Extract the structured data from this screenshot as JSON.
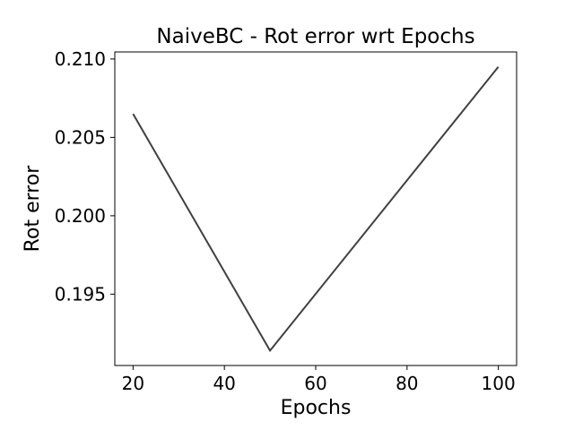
{
  "chart_data": {
    "type": "line",
    "title": "NaiveBC - Rot error wrt Epochs",
    "xlabel": "Epochs",
    "ylabel": "Rot error",
    "x": [
      20,
      50,
      100
    ],
    "series": [
      {
        "values": [
          0.2065,
          0.1914,
          0.2095
        ]
      }
    ],
    "xlim": [
      16,
      104
    ],
    "ylim": [
      0.19045,
      0.21045
    ],
    "xticks": [
      20,
      40,
      60,
      80,
      100
    ],
    "xtick_labels": [
      "20",
      "40",
      "60",
      "80",
      "100"
    ],
    "yticks": [
      0.195,
      0.2,
      0.205,
      0.21
    ],
    "ytick_labels": [
      "0.195",
      "0.200",
      "0.205",
      "0.210"
    ],
    "grid": false,
    "line_color": "#404040"
  }
}
